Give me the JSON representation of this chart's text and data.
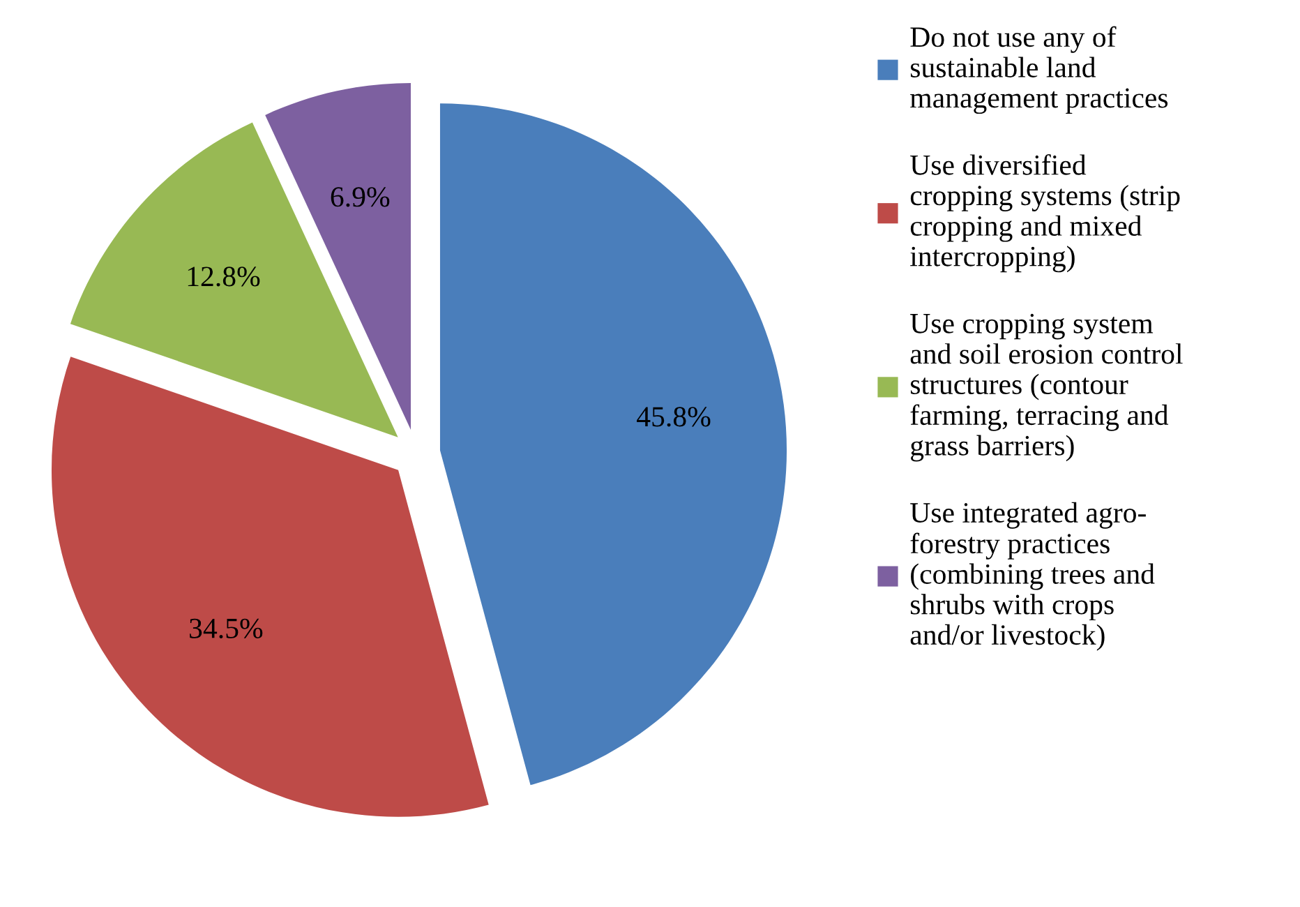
{
  "chart_data": {
    "type": "pie",
    "categories": [
      "Do not use any of\nsustainable land\nmanagement practices",
      "Use diversified\ncropping systems (strip\ncropping and mixed\nintercropping)",
      "Use cropping system\nand soil erosion control\nstructures (contour\nfarming, terracing and\ngrass barriers)",
      "Use integrated agro-\nforestry practices\n(combining trees and\nshrubs with crops\nand/or livestock)"
    ],
    "values": [
      45.8,
      34.5,
      12.8,
      6.9
    ],
    "colors": [
      "#4a7ebb",
      "#be4b48",
      "#98b954",
      "#7d60a0"
    ],
    "value_labels": [
      "45.8%",
      "34.5%",
      "12.8%",
      "6.9%"
    ],
    "legend": "right"
  }
}
